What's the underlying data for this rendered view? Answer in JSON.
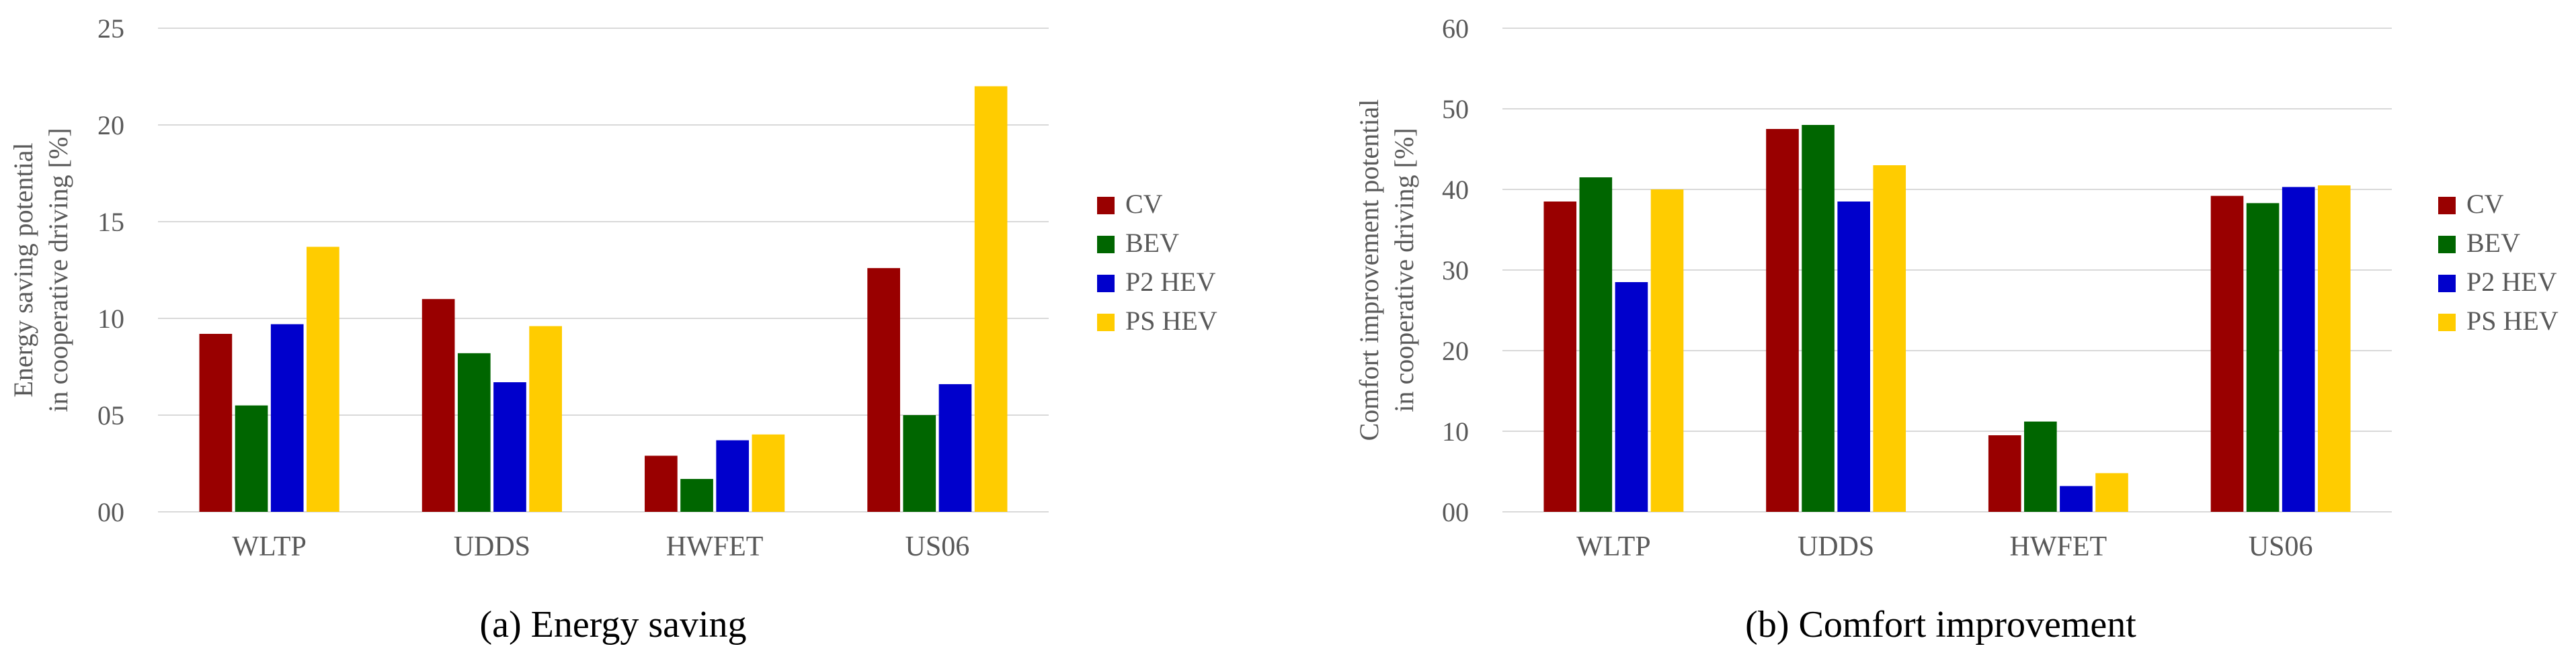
{
  "colors": {
    "CV": "#990000",
    "BEV": "#006600",
    "P2 HEV": "#0000CC",
    "PS HEV": "#FFCC00",
    "grid": "#d9d9d9",
    "text": "#595959"
  },
  "chart_data": [
    {
      "type": "bar",
      "caption": "(a) Energy saving",
      "ylabel_lines": [
        "Energy saving potential",
        "in cooperative driving [%]"
      ],
      "categories": [
        "WLTP",
        "UDDS",
        "HWFET",
        "US06"
      ],
      "ylim": [
        0,
        25
      ],
      "yticks": [
        0,
        5,
        10,
        15,
        20,
        25
      ],
      "ytick_labels": [
        "00",
        "05",
        "10",
        "15",
        "20",
        "25"
      ],
      "grid": true,
      "legend_position": "right",
      "series": [
        {
          "name": "CV",
          "values": [
            9.2,
            11.0,
            2.9,
            12.6
          ]
        },
        {
          "name": "BEV",
          "values": [
            5.5,
            8.2,
            1.7,
            5.0
          ]
        },
        {
          "name": "P2 HEV",
          "values": [
            9.7,
            6.7,
            3.7,
            6.6
          ]
        },
        {
          "name": "PS HEV",
          "values": [
            13.7,
            9.6,
            4.0,
            22.0
          ]
        }
      ]
    },
    {
      "type": "bar",
      "caption": "(b) Comfort improvement",
      "ylabel_lines": [
        "Comfort improvement potential",
        "in cooperative driving [%]"
      ],
      "categories": [
        "WLTP",
        "UDDS",
        "HWFET",
        "US06"
      ],
      "ylim": [
        0,
        60
      ],
      "yticks": [
        0,
        10,
        20,
        30,
        40,
        50,
        60
      ],
      "ytick_labels": [
        "00",
        "10",
        "20",
        "30",
        "40",
        "50",
        "60"
      ],
      "grid": true,
      "legend_position": "right",
      "series": [
        {
          "name": "CV",
          "values": [
            38.5,
            47.5,
            9.5,
            39.2
          ]
        },
        {
          "name": "BEV",
          "values": [
            41.5,
            48.0,
            11.2,
            38.3
          ]
        },
        {
          "name": "P2 HEV",
          "values": [
            28.5,
            38.5,
            3.2,
            40.3
          ]
        },
        {
          "name": "PS HEV",
          "values": [
            40.0,
            43.0,
            4.8,
            40.5
          ]
        }
      ]
    }
  ]
}
